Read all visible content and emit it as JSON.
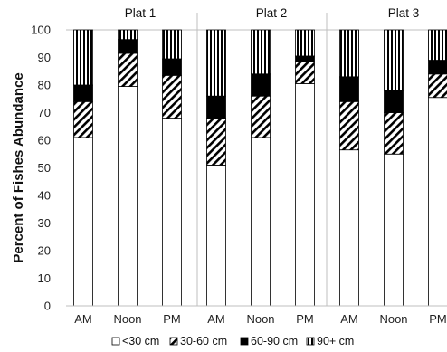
{
  "chart_data": {
    "type": "bar",
    "stacked": true,
    "ylabel": "Percent of Fishes Abundance",
    "ylim": [
      0,
      100
    ],
    "yticks": [
      0,
      10,
      20,
      30,
      40,
      50,
      60,
      70,
      80,
      90,
      100
    ],
    "groups": [
      "Plat 1",
      "Plat 2",
      "Plat 3"
    ],
    "categories": [
      "AM",
      "Noon",
      "PM",
      "AM",
      "Noon",
      "PM",
      "AM",
      "Noon",
      "PM"
    ],
    "series": [
      {
        "name": "<30 cm",
        "pattern": "white",
        "values": [
          61,
          79.5,
          68,
          51,
          61,
          80.5,
          56.5,
          55,
          75.5
        ]
      },
      {
        "name": "30-60 cm",
        "pattern": "diagonal-hatch",
        "values": [
          13,
          12,
          15.5,
          17,
          15,
          8,
          17.5,
          15,
          8.5
        ]
      },
      {
        "name": "60-90 cm",
        "pattern": "solid-black",
        "values": [
          6,
          5,
          6,
          8,
          8,
          2,
          9,
          8,
          5
        ]
      },
      {
        "name": "90+ cm",
        "pattern": "vertical-stripes",
        "values": [
          20,
          3.5,
          10.5,
          24,
          16,
          9.5,
          17,
          22,
          11
        ]
      }
    ],
    "legend_position": "bottom",
    "grid": false,
    "colors": {
      "axis": "#bfbfbf",
      "bar_outline": "#000000",
      "fill_dark": "#000000",
      "fill_light": "#ffffff"
    }
  }
}
